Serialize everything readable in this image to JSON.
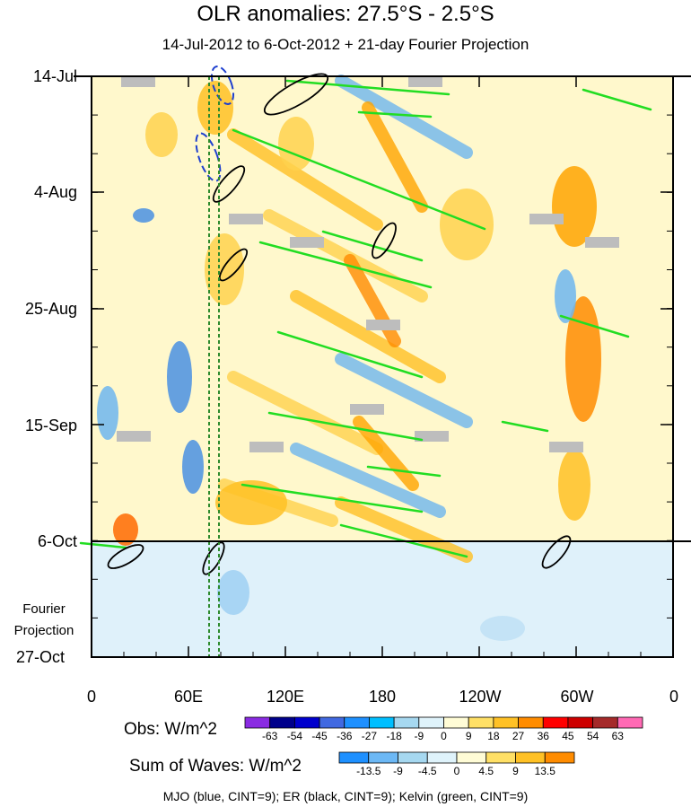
{
  "chart_data": {
    "type": "heatmap",
    "title": "OLR anomalies: 27.5°S - 2.5°S",
    "subtitle": "14-Jul-2012 to 6-Oct-2012 + 21-day Fourier Projection",
    "y_ticks": [
      "14-Jul",
      "4-Aug",
      "25-Aug",
      "15-Sep",
      "6-Oct",
      "27-Oct"
    ],
    "projection_label": [
      "Fourier",
      "Projection"
    ],
    "x_ticks": [
      "0",
      "60E",
      "120E",
      "180",
      "120W",
      "60W",
      "0"
    ],
    "obs_colorbar": {
      "label": "Obs: W/m^2",
      "levels": [
        -63,
        -54,
        -45,
        -36,
        -27,
        -18,
        -9,
        0,
        9,
        18,
        27,
        36,
        45,
        54,
        63
      ],
      "colors": [
        "#8a2be2",
        "#00008b",
        "#0000cd",
        "#4169e1",
        "#1e90ff",
        "#00bfff",
        "#a6d8f0",
        "#dff3fb",
        "#fffcd6",
        "#ffe066",
        "#ffc125",
        "#ff8c00",
        "#ff0000",
        "#cd0000",
        "#a52a2a",
        "#ff69b4"
      ]
    },
    "waves_colorbar": {
      "label": "Sum of Waves: W/m^2",
      "levels": [
        -13.5,
        -9,
        -4.5,
        0,
        4.5,
        9,
        13.5
      ],
      "colors": [
        "#1e90ff",
        "#6cb8f5",
        "#a6d8f0",
        "#dff3fb",
        "#fffcd6",
        "#ffe066",
        "#ffc125",
        "#ff8c00"
      ]
    },
    "caption": "MJO (blue, CINT=9); ER (black, CINT=9); Kelvin (green, CINT=9)"
  }
}
